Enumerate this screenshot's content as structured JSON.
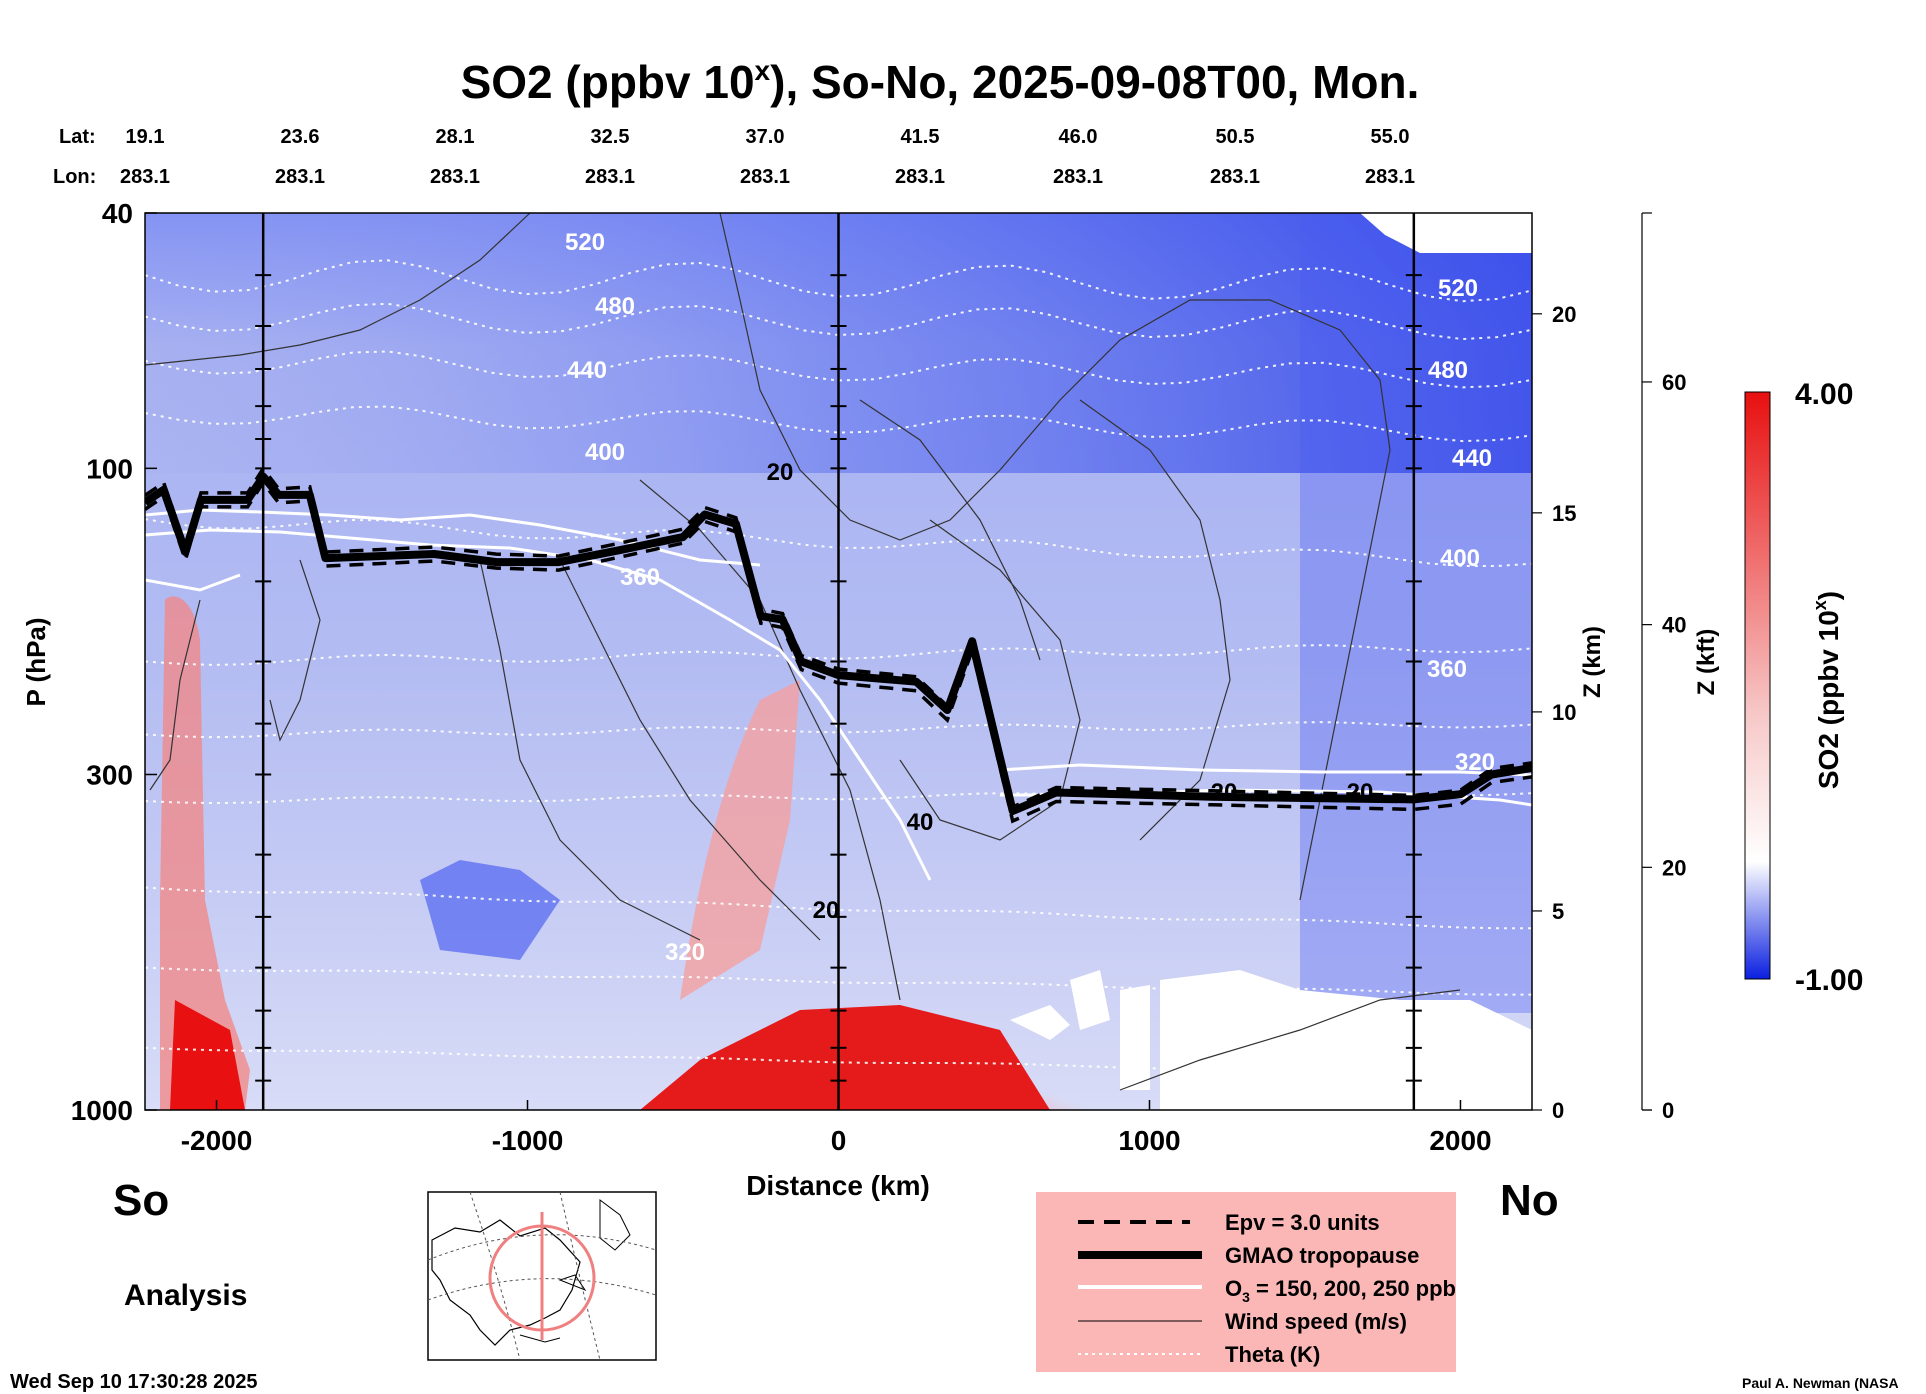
{
  "chart_data": {
    "type": "cross-section",
    "title_main": "SO2 (ppbv 10",
    "title_sup": "x",
    "title_rest": "), So-No, 2025-09-08T00, Mon.",
    "lat_label": "Lat:",
    "lon_label": "Lon:",
    "lats": [
      "19.1",
      "23.6",
      "28.1",
      "32.5",
      "37.0",
      "41.5",
      "46.0",
      "50.5",
      "55.0"
    ],
    "lons": [
      "283.1",
      "283.1",
      "283.1",
      "283.1",
      "283.1",
      "283.1",
      "283.1",
      "283.1",
      "283.1"
    ],
    "xlabel": "Distance (km)",
    "xlim": [
      -2230,
      2230
    ],
    "xticks": [
      -2000,
      -1000,
      0,
      1000,
      2000
    ],
    "xtick_labels": [
      "-2000",
      "-1000",
      "0",
      "1000",
      "2000"
    ],
    "ylabel": "P (hPa)",
    "ylim": [
      1000,
      40
    ],
    "yticks": [
      40,
      100,
      300,
      1000
    ],
    "ytick_labels": [
      "40",
      "100",
      "300",
      "1000"
    ],
    "z_km_label": "Z (km)",
    "z_km_ticks": [
      0,
      5,
      10,
      15,
      20
    ],
    "z_km_labels": [
      "0",
      "5",
      "10",
      "15",
      "20"
    ],
    "z_kft_label": "Z (kft)",
    "z_kft_ticks": [
      0,
      20,
      40,
      60
    ],
    "z_kft_labels": [
      "0",
      "20",
      "40",
      "60"
    ],
    "colorbar_label_main": "SO2 (ppbv 10",
    "colorbar_label_sup": "x",
    "colorbar_label_rest": ")",
    "colorbar_range": [
      -1.0,
      4.0
    ],
    "colorbar_max_label": "4.00",
    "colorbar_min_label": "-1.00",
    "colors": {
      "low": "#0a1fe0",
      "mid": "#ffffff",
      "high": "#e81010",
      "legend_bg": "#fbb6b6"
    },
    "vertical_lines_km": [
      -1850,
      0,
      1850
    ],
    "theta_levels": [
      "320",
      "360",
      "400",
      "440",
      "480",
      "520"
    ],
    "wind_labels": [
      "20",
      "40",
      "20",
      "20"
    ],
    "theta_right_labels": [
      "520",
      "480",
      "440",
      "400",
      "360",
      "320"
    ],
    "tropopause_hpa": [
      [
        -2230,
        113
      ],
      [
        -2170,
        108
      ],
      [
        -2100,
        135
      ],
      [
        -2050,
        112
      ],
      [
        -1900,
        112
      ],
      [
        -1850,
        103
      ],
      [
        -1800,
        110
      ],
      [
        -1700,
        110
      ],
      [
        -1650,
        138
      ],
      [
        -1300,
        136
      ],
      [
        -1100,
        140
      ],
      [
        -900,
        140
      ],
      [
        -700,
        134
      ],
      [
        -500,
        128
      ],
      [
        -430,
        118
      ],
      [
        -330,
        122
      ],
      [
        -250,
        170
      ],
      [
        -180,
        172
      ],
      [
        -120,
        200
      ],
      [
        0,
        210
      ],
      [
        250,
        215
      ],
      [
        350,
        238
      ],
      [
        430,
        186
      ],
      [
        560,
        342
      ],
      [
        700,
        320
      ],
      [
        1200,
        325
      ],
      [
        1850,
        328
      ],
      [
        2000,
        322
      ],
      [
        2100,
        300
      ],
      [
        2230,
        293
      ]
    ],
    "tropopause_label_so": "So",
    "tropopause_label_no": "No"
  },
  "legend": {
    "epv": "Epv = 3.0 units",
    "tropopause": "GMAO tropopause",
    "o3": "O",
    "o3_sub": "3",
    "o3_rest": " = 150, 200, 250 ppb",
    "wind": "Wind speed (m/s)",
    "theta": "Theta (K)"
  },
  "annotations": {
    "so": "So",
    "no": "No",
    "analysis": "Analysis",
    "timestamp": "Wed Sep 10 17:30:28 2025",
    "credit": "Paul A. Newman (NASA"
  }
}
